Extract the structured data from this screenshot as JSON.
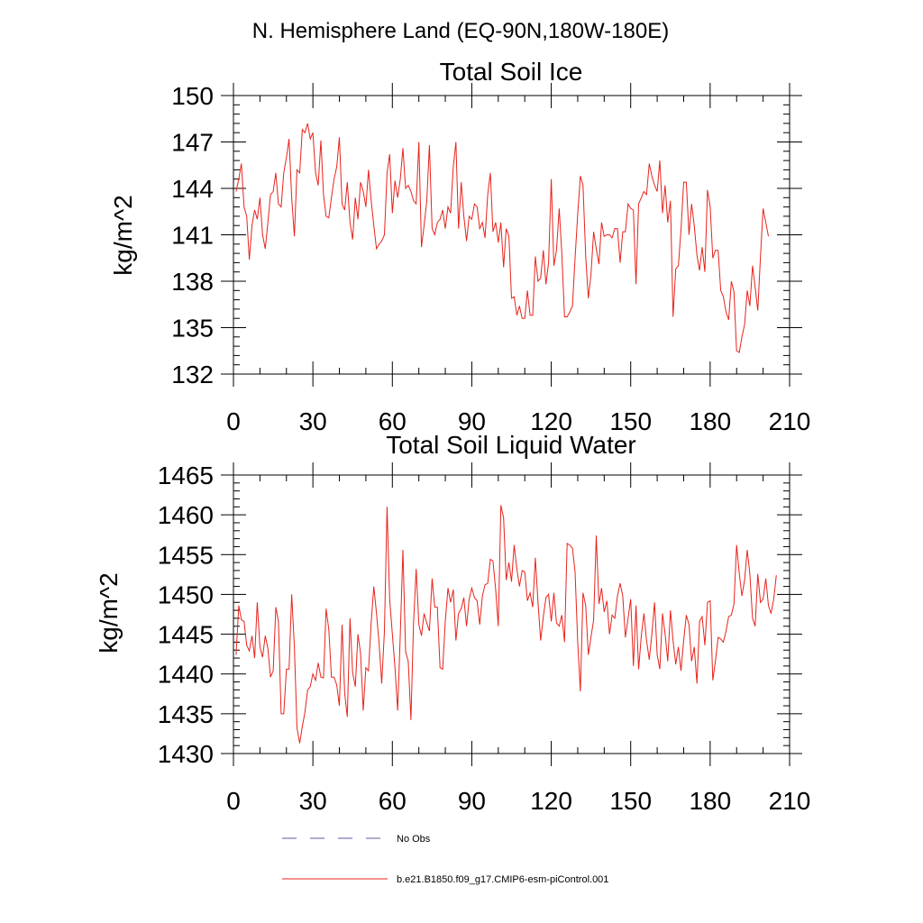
{
  "page_title": "N. Hemisphere Land (EQ-90N,180W-180E)",
  "legend": [
    {
      "label": "No Obs",
      "color": "#5a5aa0",
      "style": "dashed"
    },
    {
      "label": "b.e21.B1850.f09_g17.CMIP6-esm-piControl.001",
      "color": "#e8231c",
      "style": "solid"
    }
  ],
  "chart_data": [
    {
      "type": "line",
      "title": "Total Soil Ice",
      "xlabel": "",
      "ylabel": "kg/m^2",
      "xlim": [
        0,
        210
      ],
      "ylim": [
        132,
        150
      ],
      "xticks": [
        "0",
        "30",
        "60",
        "90",
        "120",
        "150",
        "180",
        "210"
      ],
      "yticks": [
        "132",
        "135",
        "138",
        "141",
        "144",
        "147",
        "150"
      ],
      "series": [
        {
          "name": "b.e21.B1850.f09_g17.CMIP6-esm-piControl.001",
          "color": "#e8231c",
          "values": [
            143.8,
            144.6,
            145.6,
            142.8,
            142.2,
            139.4,
            141.6,
            142.6,
            142.0,
            143.4,
            141.0,
            140.1,
            141.8,
            143.6,
            143.8,
            145.0,
            143.0,
            142.8,
            145.0,
            146.0,
            147.2,
            143.4,
            140.9,
            145.2,
            145.0,
            147.8,
            147.6,
            148.2,
            147.2,
            147.6,
            145.0,
            144.2,
            147.1,
            143.6,
            142.2,
            142.1,
            143.4,
            144.6,
            145.4,
            147.3,
            143.0,
            142.6,
            144.4,
            141.8,
            140.7,
            143.4,
            142.0,
            144.4,
            143.8,
            142.8,
            145.2,
            143.2,
            141.6,
            140.1,
            140.4,
            140.6,
            141.0,
            145.0,
            146.2,
            142.4,
            144.5,
            143.4,
            144.6,
            146.6,
            144.0,
            144.2,
            143.8,
            143.2,
            143.0,
            147.0,
            140.2,
            141.6,
            143.2,
            146.8,
            141.4,
            141.0,
            141.8,
            142.0,
            142.6,
            141.4,
            142.8,
            142.4,
            145.4,
            147.0,
            141.4,
            144.4,
            142.2,
            140.6,
            142.2,
            142.0,
            143.0,
            142.8,
            141.4,
            141.8,
            140.8,
            143.6,
            145.0,
            141.2,
            141.8,
            140.5,
            141.8,
            138.9,
            141.4,
            140.9,
            136.9,
            137.0,
            135.8,
            136.4,
            135.6,
            135.6,
            137.4,
            135.8,
            135.8,
            139.6,
            138.0,
            138.2,
            140.0,
            137.8,
            139.2,
            144.6,
            139.0,
            140.0,
            142.7,
            139.8,
            135.7,
            135.7,
            136.0,
            136.4,
            139.5,
            142.4,
            144.8,
            144.2,
            139.6,
            136.9,
            138.4,
            141.2,
            140.1,
            139.1,
            141.8,
            140.9,
            141.0,
            141.0,
            140.8,
            141.4,
            141.4,
            139.2,
            141.2,
            141.2,
            143.0,
            142.7,
            142.6,
            137.8,
            143.0,
            143.4,
            143.8,
            143.6,
            145.6,
            144.8,
            144.2,
            143.8,
            145.8,
            142.4,
            144.2,
            141.8,
            143.2,
            135.7,
            138.8,
            139.0,
            141.3,
            144.4,
            144.4,
            141.0,
            143.0,
            141.6,
            139.7,
            138.7,
            140.2,
            138.6,
            143.9,
            142.8,
            139.5,
            140.0,
            140.0,
            137.4,
            137.0,
            136.0,
            135.5,
            138.0,
            137.3,
            133.5,
            133.4,
            134.4,
            135.2,
            137.4,
            136.4,
            139.0,
            137.6,
            136.1,
            139.6,
            142.7,
            141.8,
            140.9
          ]
        }
      ]
    },
    {
      "type": "line",
      "title": "Total Soil Liquid Water",
      "xlabel": "",
      "ylabel": "kg/m^2",
      "xlim": [
        0,
        210
      ],
      "ylim": [
        1430,
        1465
      ],
      "xticks": [
        "0",
        "30",
        "60",
        "90",
        "120",
        "150",
        "180",
        "210"
      ],
      "yticks": [
        "1430",
        "1435",
        "1440",
        "1445",
        "1450",
        "1455",
        "1460",
        "1465"
      ],
      "series": [
        {
          "name": "b.e21.B1850.f09_g17.CMIP6-esm-piControl.001",
          "color": "#e8231c",
          "values": [
            1442.4,
            1448.6,
            1446.8,
            1446.6,
            1443.6,
            1442.9,
            1444.8,
            1442.0,
            1449.0,
            1443.4,
            1442.1,
            1444.8,
            1443.2,
            1439.6,
            1440.4,
            1448.4,
            1446.6,
            1435.0,
            1435.0,
            1440.6,
            1440.6,
            1450.0,
            1443.4,
            1433.2,
            1431.3,
            1433.4,
            1435.2,
            1438.0,
            1438.4,
            1440.0,
            1439.2,
            1441.4,
            1439.6,
            1439.5,
            1448.2,
            1445.6,
            1439.6,
            1439.6,
            1438.6,
            1436.0,
            1446.2,
            1437.6,
            1434.6,
            1447.0,
            1440.2,
            1438.4,
            1445.0,
            1442.6,
            1435.4,
            1440.8,
            1440.4,
            1446.4,
            1451.0,
            1447.6,
            1443.8,
            1438.8,
            1445.4,
            1461.0,
            1449.4,
            1445.0,
            1440.8,
            1435.4,
            1445.0,
            1455.6,
            1442.8,
            1441.6,
            1434.2,
            1446.4,
            1453.2,
            1446.2,
            1444.8,
            1447.6,
            1446.4,
            1445.4,
            1452.0,
            1448.4,
            1448.4,
            1440.8,
            1440.6,
            1446.6,
            1450.8,
            1449.0,
            1450.6,
            1444.2,
            1447.6,
            1448.2,
            1449.6,
            1446.0,
            1449.4,
            1450.8,
            1449.6,
            1449.2,
            1446.2,
            1449.8,
            1451.2,
            1451.4,
            1454.4,
            1454.2,
            1450.6,
            1446.0,
            1461.2,
            1459.6,
            1451.8,
            1454.0,
            1451.6,
            1456.2,
            1453.2,
            1451.0,
            1453.0,
            1452.8,
            1449.2,
            1450.2,
            1448.4,
            1454.6,
            1449.0,
            1444.2,
            1447.2,
            1449.6,
            1450.0,
            1446.6,
            1450.2,
            1446.4,
            1446.0,
            1447.4,
            1444.0,
            1456.4,
            1456.2,
            1455.8,
            1452.8,
            1443.8,
            1437.8,
            1450.2,
            1448.6,
            1442.4,
            1444.6,
            1446.8,
            1457.4,
            1448.8,
            1450.8,
            1447.8,
            1449.2,
            1445.0,
            1447.4,
            1447.0,
            1449.8,
            1451.4,
            1449.8,
            1444.6,
            1447.0,
            1449.4,
            1441.0,
            1448.6,
            1440.6,
            1444.8,
            1447.6,
            1444.2,
            1441.8,
            1445.0,
            1449.0,
            1442.4,
            1440.6,
            1447.6,
            1445.0,
            1441.6,
            1448.0,
            1444.2,
            1441.2,
            1443.4,
            1440.4,
            1444.2,
            1447.4,
            1446.2,
            1441.6,
            1443.4,
            1438.8,
            1446.6,
            1447.2,
            1443.6,
            1449.0,
            1449.2,
            1439.2,
            1441.6,
            1444.6,
            1444.4,
            1444.0,
            1445.4,
            1447.2,
            1447.4,
            1448.8,
            1456.2,
            1452.6,
            1449.8,
            1451.8,
            1455.6,
            1452.6,
            1447.0,
            1446.0,
            1452.6,
            1449.0,
            1449.4,
            1452.0,
            1448.6,
            1447.6,
            1449.4,
            1452.4
          ]
        }
      ]
    }
  ]
}
